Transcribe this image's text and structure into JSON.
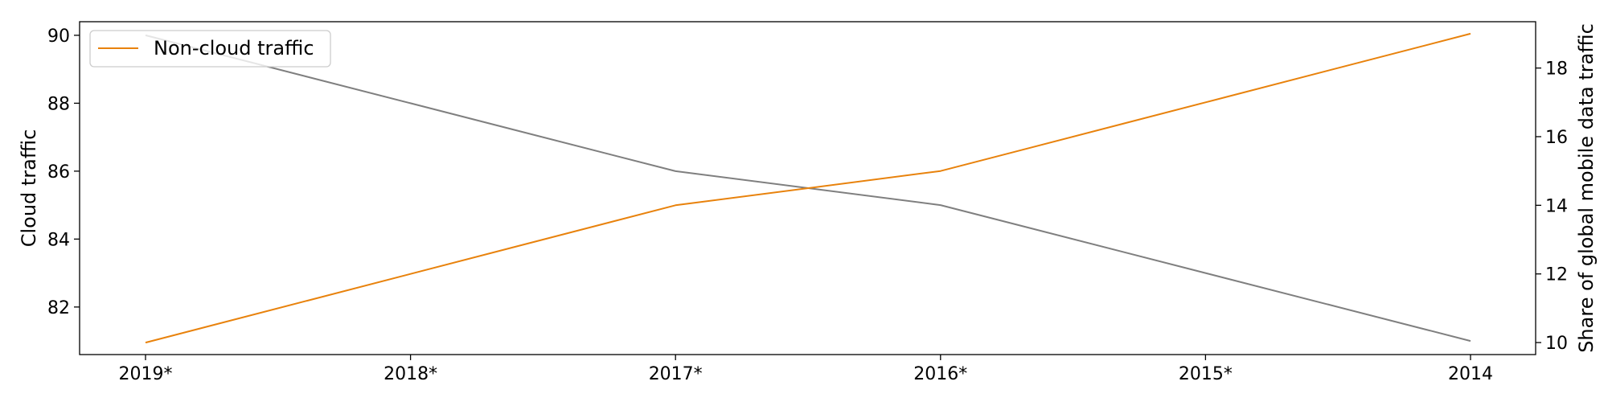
{
  "chart_data": {
    "type": "line",
    "categories": [
      "2019*",
      "2018*",
      "2017*",
      "2016*",
      "2015*",
      "2014"
    ],
    "series": [
      {
        "name": "Non-cloud traffic",
        "axis": "right",
        "color": "#e8820c",
        "values": [
          10,
          12,
          14,
          15,
          17,
          19
        ]
      },
      {
        "axis": "left",
        "color": "#7f7f7f",
        "values": [
          90,
          88,
          86,
          85,
          83,
          81
        ]
      }
    ],
    "ylabel": "Cloud traffic",
    "y2label": "Share of global mobile data traffic",
    "ylim": [
      80.6,
      90.4
    ],
    "y2lim": [
      9.65,
      19.35
    ],
    "yticks": [
      82,
      84,
      86,
      88,
      90
    ],
    "y2ticks": [
      10,
      12,
      14,
      16,
      18
    ],
    "legend_position": "top-left",
    "grid": false
  }
}
